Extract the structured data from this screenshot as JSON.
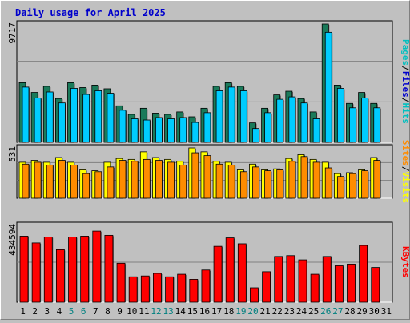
{
  "title": "Daily usage for April 2025",
  "colors": {
    "background": "#c0c0c0",
    "panel": "#c0c0c0",
    "grid": "#808080",
    "title": "#0000cc",
    "hits": "#00c0c0",
    "hits_front": "#00ccff",
    "files": "#0000cc",
    "files_back": "#1a7a5a",
    "pages": "#00c0c0",
    "visits": "#ffff00",
    "sites": "#ff8c00",
    "kbytes": "#ff0000",
    "weekend_label": "#008080",
    "weekday_label": "#000000"
  },
  "chart_data": [
    {
      "type": "bar",
      "title": "Daily usage for April 2025",
      "ylabel_max": "9717",
      "series_labels": [
        "Pages",
        "Files",
        "Hits"
      ],
      "series_label_colors": [
        "#00c0c0",
        "#0000cc",
        "#00c0c0"
      ],
      "categories": [
        "1",
        "2",
        "3",
        "4",
        "5",
        "6",
        "7",
        "8",
        "9",
        "10",
        "11",
        "12",
        "13",
        "14",
        "15",
        "16",
        "17",
        "18",
        "19",
        "20",
        "21",
        "22",
        "23",
        "24",
        "25",
        "26",
        "27",
        "28",
        "29",
        "30",
        "31"
      ],
      "weekend_days": [
        5,
        6,
        12,
        13,
        19,
        20,
        26,
        27
      ],
      "ylim": [
        0,
        9717
      ],
      "series": [
        {
          "name": "Hits",
          "values": [
            4900,
            4100,
            4600,
            3600,
            4900,
            4500,
            4700,
            4400,
            3000,
            2300,
            2800,
            2400,
            2300,
            2500,
            2100,
            2800,
            4600,
            4900,
            4600,
            1600,
            2800,
            3900,
            4200,
            3600,
            2500,
            9717,
            4700,
            3200,
            4100,
            3200,
            0
          ]
        },
        {
          "name": "Files",
          "values": [
            4800,
            3900,
            4400,
            3500,
            4700,
            4200,
            4500,
            4300,
            2900,
            2200,
            2100,
            2300,
            2200,
            2300,
            1900,
            2700,
            4500,
            4800,
            4500,
            1400,
            2700,
            3800,
            4000,
            3500,
            2200,
            9300,
            4700,
            3100,
            3900,
            3100,
            0
          ]
        }
      ]
    },
    {
      "type": "bar",
      "ylabel_max": "531",
      "series_labels": [
        "Sites",
        "Visits"
      ],
      "series_label_colors": [
        "#ff8c00",
        "#ffff00"
      ],
      "categories": [
        "1",
        "2",
        "3",
        "4",
        "5",
        "6",
        "7",
        "8",
        "9",
        "10",
        "11",
        "12",
        "13",
        "14",
        "15",
        "16",
        "17",
        "18",
        "19",
        "20",
        "21",
        "22",
        "23",
        "24",
        "25",
        "26",
        "27",
        "28",
        "29",
        "30",
        "31"
      ],
      "ylim": [
        0,
        531
      ],
      "series": [
        {
          "name": "Visits",
          "values": [
            380,
            400,
            380,
            430,
            380,
            300,
            290,
            380,
            420,
            410,
            490,
            430,
            410,
            390,
            531,
            490,
            390,
            380,
            300,
            360,
            300,
            310,
            420,
            460,
            410,
            380,
            260,
            270,
            300,
            430,
            0
          ]
        },
        {
          "name": "Sites",
          "values": [
            360,
            380,
            350,
            400,
            350,
            260,
            280,
            330,
            400,
            390,
            410,
            400,
            380,
            350,
            480,
            450,
            360,
            350,
            280,
            330,
            290,
            300,
            390,
            440,
            380,
            320,
            230,
            260,
            290,
            400,
            0
          ]
        }
      ]
    },
    {
      "type": "bar",
      "ylabel_max": "434594",
      "series_labels": [
        "KBytes"
      ],
      "series_label_colors": [
        "#ff0000"
      ],
      "categories": [
        "1",
        "2",
        "3",
        "4",
        "5",
        "6",
        "7",
        "8",
        "9",
        "10",
        "11",
        "12",
        "13",
        "14",
        "15",
        "16",
        "17",
        "18",
        "19",
        "20",
        "21",
        "22",
        "23",
        "24",
        "25",
        "26",
        "27",
        "28",
        "29",
        "30",
        "31"
      ],
      "ylim": [
        0,
        434594
      ],
      "series": [
        {
          "name": "KBytes",
          "values": [
            390000,
            350000,
            385000,
            310000,
            385000,
            390000,
            420000,
            395000,
            230000,
            150000,
            155000,
            170000,
            150000,
            165000,
            135000,
            190000,
            330000,
            380000,
            345000,
            85000,
            180000,
            270000,
            275000,
            250000,
            165000,
            270000,
            215000,
            225000,
            335000,
            205000,
            0
          ]
        }
      ]
    }
  ]
}
